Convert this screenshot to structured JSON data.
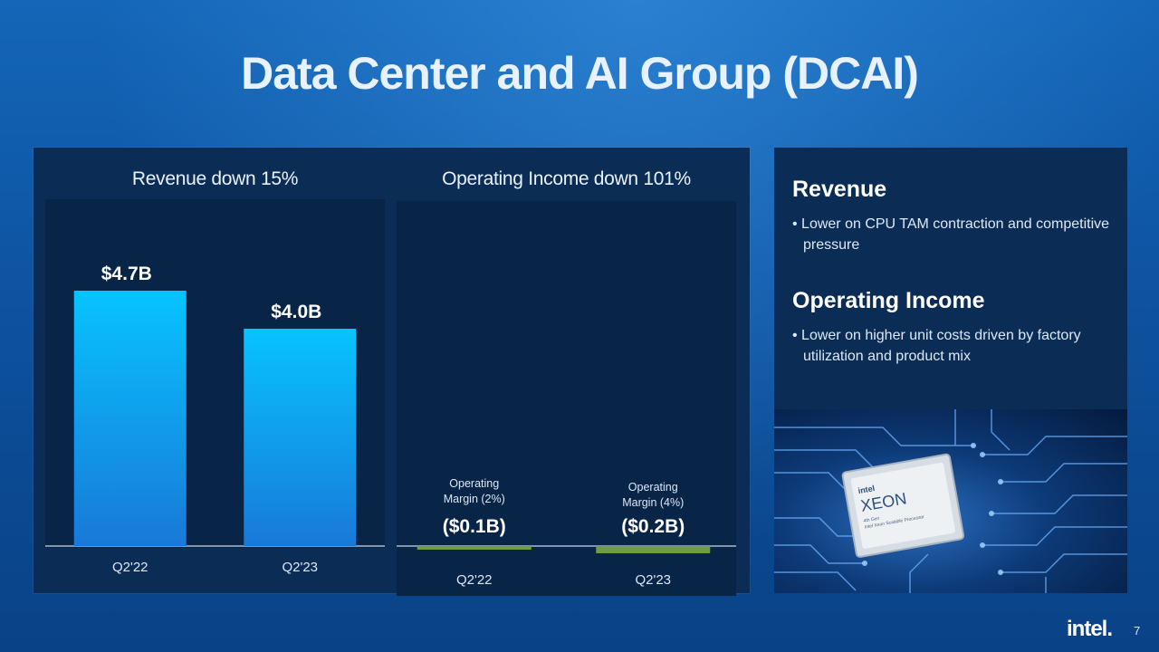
{
  "slide": {
    "title": "Data Center and AI Group (DCAI)",
    "page_number": "7",
    "logo_text": "intel."
  },
  "sidebar": {
    "revenue_heading": "Revenue",
    "revenue_bullet": "• Lower on CPU TAM contraction and competitive pressure",
    "oi_heading": "Operating Income",
    "oi_bullet": "• Lower on higher unit costs driven by factory utilization and product mix",
    "image_labels": {
      "brand": "intel",
      "product": "XEON",
      "subtitle1": "4th Gen",
      "subtitle2": "Intel Xeon Scalable Processor"
    }
  },
  "colors": {
    "bar_top": "#08c3ff",
    "bar_bottom": "#1879d8",
    "oi_bar": "#6e9b43",
    "baseline": "#c8d8ea"
  },
  "chart_data": [
    {
      "type": "bar",
      "title": "Revenue down 15%",
      "categories": [
        "Q2'22",
        "Q2'23"
      ],
      "values": [
        4.7,
        4.0
      ],
      "value_labels": [
        "$4.7B",
        "$4.0B"
      ],
      "unit": "$B",
      "ylim": [
        0,
        6.0
      ]
    },
    {
      "type": "bar",
      "title": "Operating Income down 101%",
      "categories": [
        "Q2'22",
        "Q2'23"
      ],
      "values": [
        -0.1,
        -0.2
      ],
      "value_labels": [
        "($0.1B)",
        "($0.2B)"
      ],
      "annotations": [
        "Operating Margin (2%)",
        "Operating Margin (4%)"
      ],
      "annotation_lines": [
        [
          "Operating",
          "Margin (2%)"
        ],
        [
          "Operating",
          "Margin (4%)"
        ]
      ],
      "unit": "$B"
    }
  ]
}
